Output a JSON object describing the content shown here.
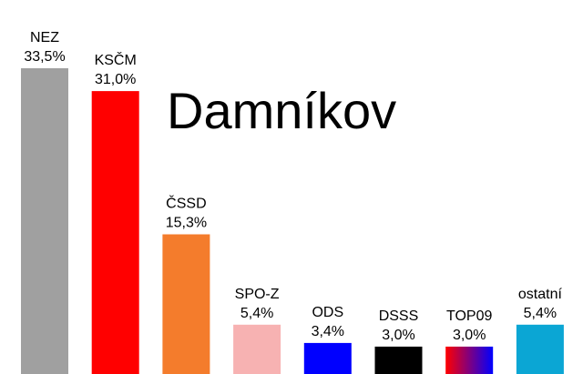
{
  "chart_data": {
    "type": "bar",
    "title": "Damníkov",
    "categories": [
      "NEZ",
      "KSČM",
      "ČSSD",
      "SPO-Z",
      "ODS",
      "DSSS",
      "TOP09",
      "ostatní"
    ],
    "values": [
      33.5,
      31.0,
      15.3,
      5.4,
      3.4,
      3.0,
      3.0,
      5.4
    ],
    "value_labels": [
      "33,5%",
      "31,0%",
      "15,3%",
      "5,4%",
      "3,4%",
      "3,0%",
      "3,0%",
      "5,4%"
    ],
    "colors": [
      "#a0a0a0",
      "#ff0000",
      "#f47c2c",
      "#f7b2b2",
      "#0000ff",
      "#000000",
      "gradient-red-blue",
      "#0ba6d4"
    ],
    "xlabel": "",
    "ylabel": "",
    "ylim": [
      0,
      33.5
    ],
    "grid": false,
    "legend": "none"
  }
}
